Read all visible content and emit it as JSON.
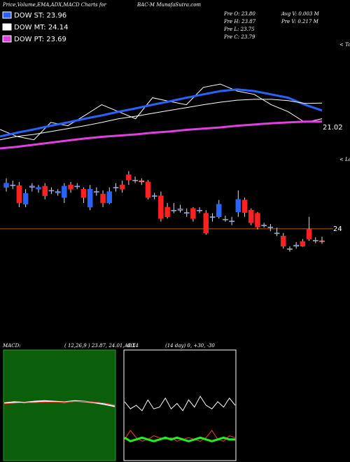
{
  "header": {
    "left": "Price,Volume,EMA,ADX,MACD Charts for",
    "center": "BAC-M MunafaSutra.com"
  },
  "info": [
    "Pre  O: 23.80",
    "Pre  H: 23.87",
    "Pre  L: 23.75",
    "Pre  C: 23.79",
    "Avg V: 0.003 M",
    "Pre  V: 0.217 M"
  ],
  "chart_data": [
    {
      "type": "line",
      "legend": [
        "DOW ST: 23.96",
        "DOW MT: 24.14",
        "DOW PT: 23.69"
      ],
      "annotation": "21.02",
      "tops": "< Tops",
      "ylim": [
        22.82,
        25.62
      ],
      "series": [
        {
          "color": "#ffffff",
          "width": 1,
          "values": [
            23.5,
            23.33,
            23.25,
            23.67,
            23.59,
            23.84,
            24.1,
            23.93,
            23.76,
            24.27,
            24.18,
            24.1,
            24.52,
            24.6,
            24.43,
            24.35,
            24.1,
            23.93,
            23.67,
            23.76
          ]
        },
        {
          "color": "#2a62ff",
          "width": 3,
          "values": [
            23.33,
            23.42,
            23.5,
            23.59,
            23.67,
            23.76,
            23.84,
            23.93,
            24.01,
            24.1,
            24.18,
            24.27,
            24.35,
            24.43,
            24.47,
            24.43,
            24.35,
            24.27,
            24.1,
            23.96
          ]
        },
        {
          "color": "#ffffff",
          "width": 1,
          "values": [
            23.25,
            23.33,
            23.38,
            23.45,
            23.52,
            23.59,
            23.67,
            23.76,
            23.82,
            23.89,
            23.96,
            24.03,
            24.1,
            24.16,
            24.21,
            24.23,
            24.23,
            24.2,
            24.13,
            24.14
          ]
        },
        {
          "color": "#e040e0",
          "width": 3,
          "values": [
            23.04,
            23.08,
            23.13,
            23.18,
            23.23,
            23.28,
            23.32,
            23.35,
            23.38,
            23.42,
            23.45,
            23.49,
            23.52,
            23.55,
            23.59,
            23.62,
            23.65,
            23.67,
            23.69,
            23.69
          ]
        }
      ]
    },
    {
      "type": "candlestick",
      "lows_label": "< Lows",
      "ylim": [
        23.44,
        25.07
      ],
      "yticks": [
        24
      ],
      "up_color": "#2a62ff",
      "down_color": "#ff2020",
      "open": [
        24.69,
        24.72,
        24.72,
        24.41,
        24.69,
        24.66,
        24.71,
        24.64,
        24.6,
        24.52,
        24.73,
        24.71,
        24.66,
        24.36,
        24.62,
        24.58,
        24.43,
        24.69,
        24.73,
        24.9,
        24.81,
        24.8,
        24.78,
        24.55,
        24.55,
        24.36,
        24.31,
        24.31,
        24.26,
        24.34,
        24.31,
        24.26,
        24.2,
        24.2,
        24.16,
        24.12,
        24.28,
        24.48,
        24.31,
        24.26,
        24.06,
        24.02,
        23.93,
        23.88,
        23.67,
        23.71,
        23.79,
        23.99,
        23.8,
        23.8
      ],
      "high": [
        24.84,
        24.8,
        24.78,
        24.66,
        24.76,
        24.73,
        24.76,
        24.69,
        24.66,
        24.76,
        24.78,
        24.76,
        24.69,
        24.73,
        24.69,
        24.64,
        24.69,
        24.76,
        24.8,
        24.96,
        24.87,
        24.84,
        24.81,
        24.6,
        24.62,
        24.43,
        24.43,
        24.4,
        24.34,
        24.36,
        24.36,
        24.31,
        24.26,
        24.48,
        24.22,
        24.2,
        24.64,
        24.52,
        24.34,
        24.28,
        24.1,
        24.08,
        24.02,
        23.93,
        23.71,
        23.78,
        23.83,
        24.2,
        23.86,
        23.87
      ],
      "low": [
        24.62,
        24.66,
        24.36,
        24.36,
        24.62,
        24.6,
        24.49,
        24.58,
        24.55,
        24.43,
        24.6,
        24.66,
        24.43,
        24.31,
        24.55,
        24.36,
        24.41,
        24.62,
        24.6,
        24.73,
        24.76,
        24.73,
        24.49,
        24.49,
        24.12,
        24.17,
        24.26,
        24.27,
        24.2,
        24.12,
        24.26,
        23.9,
        24.12,
        24.17,
        24.12,
        24.06,
        24.2,
        24.2,
        24.06,
        23.99,
        24.02,
        23.96,
        23.88,
        23.67,
        23.62,
        23.67,
        23.7,
        23.8,
        23.76,
        23.75
      ],
      "close": [
        24.76,
        24.73,
        24.43,
        24.59,
        24.71,
        24.69,
        24.55,
        24.64,
        24.62,
        24.71,
        24.66,
        24.71,
        24.52,
        24.66,
        24.62,
        24.43,
        24.62,
        24.69,
        24.66,
        24.81,
        24.81,
        24.78,
        24.52,
        24.55,
        24.17,
        24.2,
        24.31,
        24.33,
        24.27,
        24.17,
        24.31,
        23.93,
        24.2,
        24.41,
        24.16,
        24.13,
        24.49,
        24.27,
        24.1,
        24.03,
        24.06,
        24.03,
        23.93,
        23.71,
        23.67,
        23.73,
        23.71,
        23.83,
        23.81,
        23.79
      ]
    },
    {
      "type": "line",
      "title": "MACD:",
      "subtitle": "( 12,26,9 ) 23.87, 24.01, -0.14",
      "ylim": [
        -1,
        1
      ],
      "series": [
        {
          "color": "#ffffff",
          "width": 2,
          "values": [
            0.04,
            0.06,
            0.05,
            0.07,
            0.08,
            0.07,
            0.06,
            0.08,
            0.07,
            0.05,
            0.02,
            -0.02
          ]
        },
        {
          "color": "#ff3030",
          "width": 1,
          "values": [
            0.03,
            0.04,
            0.05,
            0.05,
            0.06,
            0.06,
            0.06,
            0.07,
            0.07,
            0.06,
            0.04,
            0.01
          ]
        }
      ]
    },
    {
      "type": "line",
      "title": "ADX",
      "subtitle": "(14 day) 0, +30, -30",
      "ylim": [
        0,
        60
      ],
      "series": [
        {
          "color": "#ffffff",
          "width": 1,
          "values": [
            32,
            28,
            30,
            27,
            33,
            28,
            29,
            34,
            28,
            31,
            27,
            33,
            29,
            35,
            30,
            28,
            32,
            29,
            34,
            30
          ]
        },
        {
          "color": "#ff3030",
          "width": 1,
          "values": [
            11,
            16,
            12,
            10,
            11,
            13,
            12,
            11,
            12,
            10,
            11,
            12,
            11,
            10,
            12,
            16,
            11,
            10,
            13,
            12
          ]
        },
        {
          "color": "#22ee22",
          "width": 3,
          "values": [
            12,
            10,
            11,
            12,
            11,
            10,
            11,
            12,
            11,
            12,
            11,
            10,
            11,
            12,
            11,
            10,
            11,
            12,
            11,
            11
          ]
        }
      ]
    }
  ]
}
